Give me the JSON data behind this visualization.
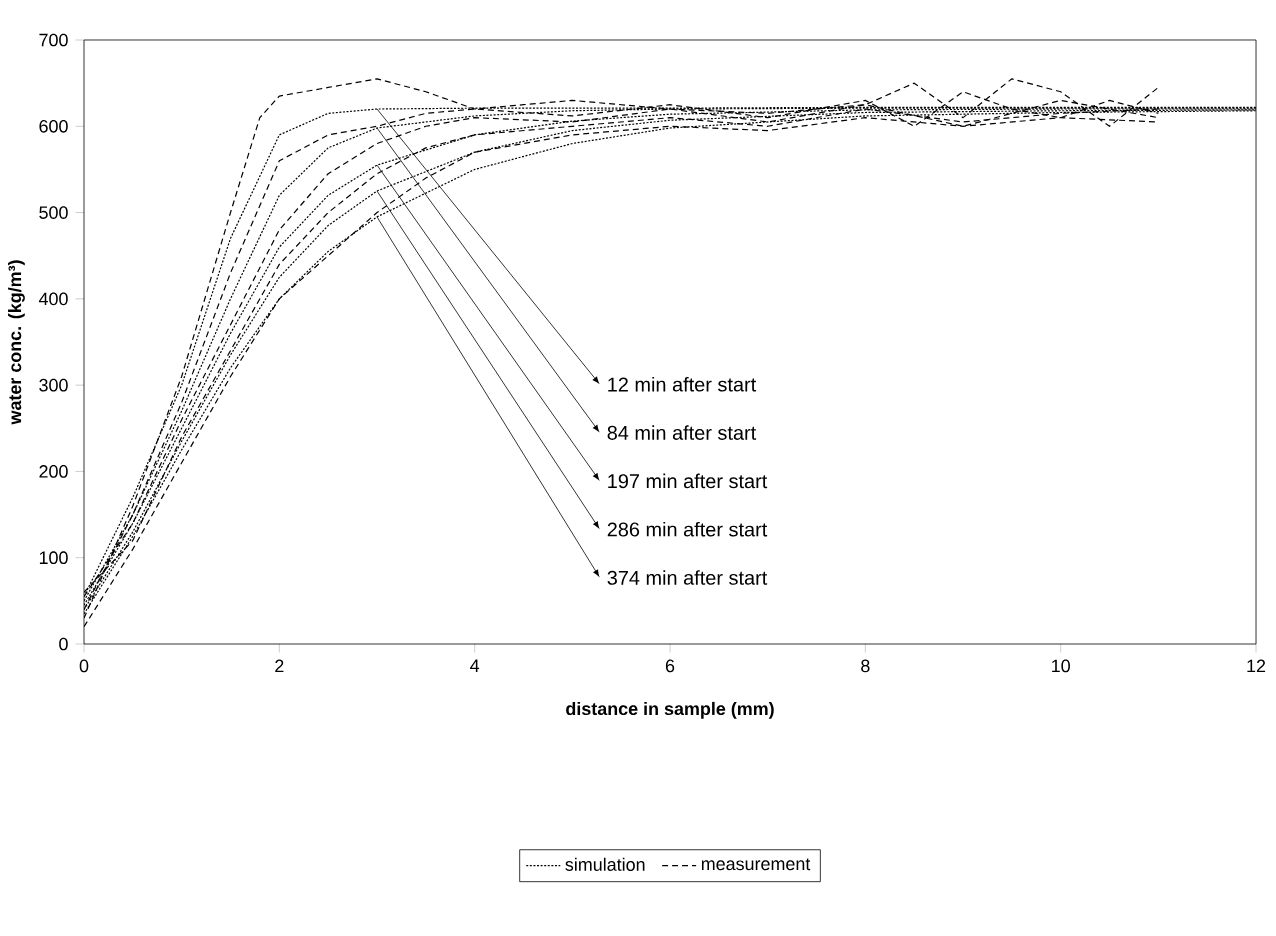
{
  "chart_data": {
    "type": "line",
    "xlabel": "distance in sample (mm)",
    "ylabel": "water conc. (kg/m³)",
    "xlim": [
      0,
      12
    ],
    "ylim": [
      0,
      700
    ],
    "xticks": [
      0,
      2,
      4,
      6,
      8,
      10,
      12
    ],
    "yticks": [
      0,
      100,
      200,
      300,
      400,
      500,
      600,
      700
    ],
    "grid": false,
    "legend": "bottom",
    "marker": "none",
    "series": [
      {
        "name": "simulation",
        "color": "#000000",
        "line_style": "dotted",
        "x": [
          0,
          0.5,
          1,
          1.5,
          2,
          2.5,
          3,
          4,
          5,
          6,
          8,
          10,
          12
        ],
        "values": [
          55,
          170,
          300,
          470,
          590,
          615,
          620,
          621,
          621,
          621,
          622,
          622,
          622
        ]
      },
      {
        "color": "#000000",
        "line_style": "dotted",
        "x": [
          0,
          0.5,
          1,
          1.5,
          2,
          2.5,
          3,
          4,
          5,
          6,
          8,
          10,
          12
        ],
        "values": [
          50,
          150,
          270,
          400,
          520,
          575,
          598,
          612,
          618,
          620,
          621,
          621,
          621
        ]
      },
      {
        "color": "#000000",
        "line_style": "dotted",
        "x": [
          0,
          0.5,
          1,
          1.5,
          2,
          2.5,
          3,
          4,
          5,
          6,
          8,
          10,
          12
        ],
        "values": [
          45,
          140,
          250,
          360,
          460,
          520,
          555,
          590,
          606,
          614,
          619,
          620,
          620
        ]
      },
      {
        "color": "#000000",
        "line_style": "dotted",
        "x": [
          0,
          0.5,
          1,
          1.5,
          2,
          2.5,
          3,
          4,
          5,
          6,
          8,
          10,
          12
        ],
        "values": [
          40,
          130,
          235,
          335,
          425,
          485,
          525,
          570,
          595,
          607,
          616,
          618,
          619
        ]
      },
      {
        "color": "#000000",
        "line_style": "dotted",
        "x": [
          0,
          0.5,
          1,
          1.5,
          2,
          2.5,
          3,
          4,
          5,
          6,
          8,
          10,
          12
        ],
        "values": [
          35,
          125,
          225,
          320,
          400,
          455,
          495,
          550,
          580,
          598,
          612,
          616,
          618
        ]
      },
      {
        "name": "measurement",
        "color": "#000000",
        "line_style": "dashed",
        "x": [
          0,
          0.5,
          1,
          1.5,
          1.8,
          2,
          2.5,
          3,
          3.5,
          4,
          4.5,
          5,
          6,
          7,
          8,
          8.5,
          9,
          9.5,
          10,
          10.5,
          11
        ],
        "values": [
          30,
          160,
          310,
          500,
          610,
          635,
          645,
          655,
          640,
          620,
          625,
          630,
          620,
          615,
          625,
          650,
          610,
          655,
          640,
          600,
          645
        ]
      },
      {
        "color": "#000000",
        "line_style": "dashed",
        "x": [
          0,
          0.5,
          1,
          1.5,
          2,
          2.5,
          3,
          3.5,
          4,
          5,
          6,
          7,
          8,
          8.5,
          9,
          9.5,
          10,
          10.5,
          11
        ],
        "values": [
          40,
          150,
          280,
          430,
          560,
          590,
          600,
          615,
          620,
          612,
          625,
          610,
          630,
          600,
          640,
          620,
          610,
          630,
          615
        ]
      },
      {
        "color": "#000000",
        "line_style": "dashed",
        "x": [
          0,
          0.5,
          1,
          1.5,
          2,
          2.5,
          3,
          3.5,
          4,
          5,
          6,
          7,
          8,
          9,
          10,
          11
        ],
        "values": [
          55,
          140,
          260,
          370,
          480,
          545,
          580,
          600,
          610,
          605,
          620,
          605,
          625,
          600,
          630,
          610
        ]
      },
      {
        "color": "#000000",
        "line_style": "dashed",
        "x": [
          0,
          0.5,
          1,
          1.5,
          2,
          2.5,
          3,
          3.5,
          4,
          5,
          6,
          7,
          8,
          9,
          10,
          11
        ],
        "values": [
          60,
          120,
          240,
          340,
          440,
          500,
          545,
          575,
          590,
          600,
          610,
          600,
          620,
          605,
          615,
          620
        ]
      },
      {
        "color": "#000000",
        "line_style": "dashed",
        "x": [
          0,
          0.5,
          1,
          1.5,
          2,
          2.5,
          3,
          3.5,
          4,
          5,
          6,
          7,
          8,
          9,
          10,
          11
        ],
        "values": [
          20,
          110,
          210,
          310,
          400,
          450,
          500,
          540,
          570,
          590,
          600,
          595,
          610,
          600,
          610,
          605
        ]
      }
    ],
    "annotations": [
      "12 min after start",
      "84 min after start",
      "197 min after start",
      "286 min after start",
      "374 min after start"
    ]
  }
}
